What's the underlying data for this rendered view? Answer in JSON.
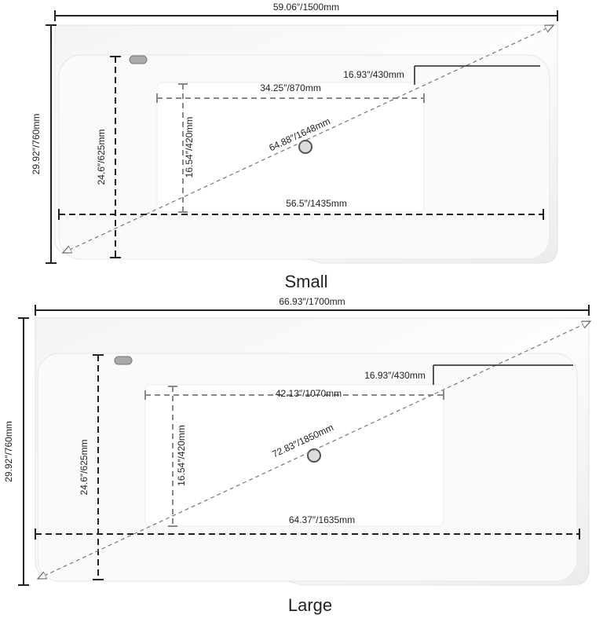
{
  "diagrams": [
    {
      "name": "Small",
      "dimensions": {
        "overall_length": "59.06″/1500mm",
        "overall_width": "29.92″/760mm",
        "inner_width": "24.6″/625mm",
        "step": "16.93″/430mm",
        "basin_length": "34.25″/870mm",
        "basin_width": "16.54″/420mm",
        "diagonal": "64.88″/1648mm",
        "inner_length": "56.5″/1435mm"
      }
    },
    {
      "name": "Large",
      "dimensions": {
        "overall_length": "66.93″/1700mm",
        "overall_width": "29.92″/760mm",
        "inner_width": "24.6″/625mm",
        "step": "16.93″/430mm",
        "basin_length": "42.13″/1070mm",
        "basin_width": "16.54″/420mm",
        "diagonal": "72.83″/1850mm",
        "inner_length": "64.37″/1635mm"
      }
    }
  ]
}
